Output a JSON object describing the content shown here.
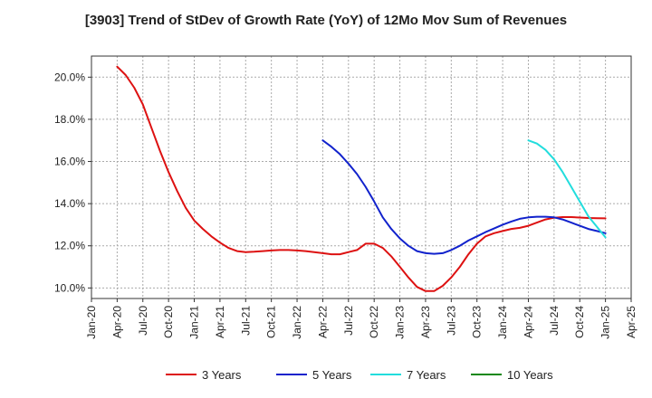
{
  "chart_data": {
    "type": "line",
    "title": "[3903]  Trend of StDev of Growth Rate (YoY) of 12Mo Mov Sum of Revenues",
    "xlabel": "",
    "ylabel": "",
    "x_ticks": [
      "Jan-20",
      "Apr-20",
      "Jul-20",
      "Oct-20",
      "Jan-21",
      "Apr-21",
      "Jul-21",
      "Oct-21",
      "Jan-22",
      "Apr-22",
      "Jul-22",
      "Oct-22",
      "Jan-23",
      "Apr-23",
      "Jul-23",
      "Oct-23",
      "Jan-24",
      "Apr-24",
      "Jul-24",
      "Oct-24",
      "Jan-25",
      "Apr-25"
    ],
    "y_ticks": [
      "10.0%",
      "12.0%",
      "14.0%",
      "16.0%",
      "18.0%",
      "20.0%"
    ],
    "x_range_months": [
      0,
      63
    ],
    "ylim": [
      9.5,
      21.0
    ],
    "grid": true,
    "legend_position": "bottom",
    "series": [
      {
        "name": "3 Years",
        "color": "#dd1111",
        "x": [
          3,
          4,
          5,
          6,
          7,
          8,
          9,
          10,
          11,
          12,
          13,
          14,
          15,
          16,
          17,
          18,
          19,
          20,
          21,
          22,
          23,
          24,
          25,
          26,
          27,
          28,
          29,
          30,
          31,
          32,
          33,
          34,
          35,
          36,
          37,
          38,
          39,
          40,
          41,
          42,
          43,
          44,
          45,
          46,
          47,
          48,
          49,
          50,
          51,
          52,
          53,
          54,
          55,
          56,
          57,
          58,
          59,
          60
        ],
        "values": [
          20.5,
          20.1,
          19.5,
          18.7,
          17.6,
          16.5,
          15.5,
          14.6,
          13.8,
          13.2,
          12.8,
          12.45,
          12.15,
          11.9,
          11.75,
          11.7,
          11.72,
          11.75,
          11.78,
          11.8,
          11.8,
          11.78,
          11.75,
          11.7,
          11.65,
          11.6,
          11.6,
          11.7,
          11.8,
          12.1,
          12.1,
          11.9,
          11.5,
          11.0,
          10.5,
          10.05,
          9.85,
          9.85,
          10.1,
          10.5,
          11.0,
          11.6,
          12.1,
          12.45,
          12.6,
          12.7,
          12.8,
          12.85,
          12.95,
          13.1,
          13.25,
          13.33,
          13.36,
          13.36,
          13.34,
          13.32,
          13.31,
          13.3
        ]
      },
      {
        "name": "5 Years",
        "color": "#1122cc",
        "x": [
          27,
          28,
          29,
          30,
          31,
          32,
          33,
          34,
          35,
          36,
          37,
          38,
          39,
          40,
          41,
          42,
          43,
          44,
          45,
          46,
          47,
          48,
          49,
          50,
          51,
          52,
          53,
          54,
          55,
          56,
          57,
          58,
          59,
          60
        ],
        "values": [
          17.0,
          16.7,
          16.35,
          15.9,
          15.4,
          14.8,
          14.1,
          13.35,
          12.8,
          12.35,
          12.0,
          11.75,
          11.65,
          11.62,
          11.65,
          11.8,
          12.0,
          12.25,
          12.45,
          12.65,
          12.82,
          13.0,
          13.15,
          13.28,
          13.35,
          13.38,
          13.38,
          13.35,
          13.25,
          13.1,
          12.95,
          12.8,
          12.7,
          12.6
        ]
      },
      {
        "name": "7 Years",
        "color": "#22dddd",
        "x": [
          51,
          52,
          53,
          54,
          55,
          56,
          57,
          58,
          59,
          60
        ],
        "values": [
          17.0,
          16.85,
          16.55,
          16.1,
          15.5,
          14.8,
          14.1,
          13.4,
          12.9,
          12.4
        ]
      },
      {
        "name": "10 Years",
        "color": "#118811",
        "x": [],
        "values": []
      }
    ]
  }
}
